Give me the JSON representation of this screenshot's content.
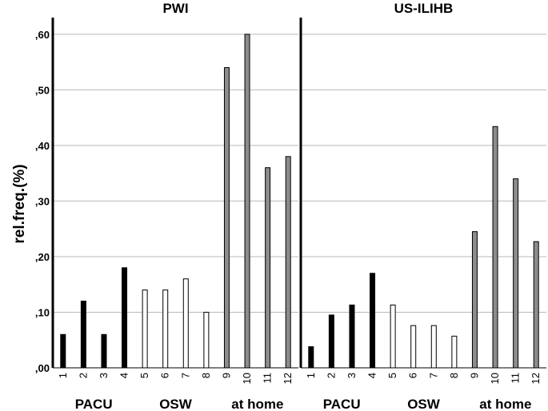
{
  "chart_data": {
    "type": "bar",
    "ylabel": "rel.freq.(%)",
    "ylim": [
      0,
      0.63
    ],
    "yticks": [
      ",00",
      ",10",
      ",20",
      ",30",
      ",40",
      ",50",
      ",60"
    ],
    "ytick_values": [
      0,
      0.1,
      0.2,
      0.3,
      0.4,
      0.5,
      0.6
    ],
    "grid": true,
    "categories": [
      "1",
      "2",
      "3",
      "4",
      "5",
      "6",
      "7",
      "8",
      "9",
      "10",
      "11",
      "12"
    ],
    "groups": [
      {
        "label": "PACU",
        "categories": [
          "1",
          "2",
          "3",
          "4"
        ],
        "color": "#000000"
      },
      {
        "label": "OSW",
        "categories": [
          "5",
          "6",
          "7",
          "8"
        ],
        "color": "#ffffff"
      },
      {
        "label": "at home",
        "categories": [
          "9",
          "10",
          "11",
          "12"
        ],
        "color": "#8c8c8c"
      }
    ],
    "panels": [
      {
        "title": "PWI",
        "values": [
          0.06,
          0.12,
          0.06,
          0.18,
          0.14,
          0.14,
          0.16,
          0.1,
          0.54,
          0.6,
          0.36,
          0.38
        ]
      },
      {
        "title": "US-ILIHB",
        "values": [
          0.038,
          0.095,
          0.113,
          0.17,
          0.113,
          0.076,
          0.076,
          0.057,
          0.245,
          0.434,
          0.34,
          0.227
        ]
      }
    ]
  }
}
